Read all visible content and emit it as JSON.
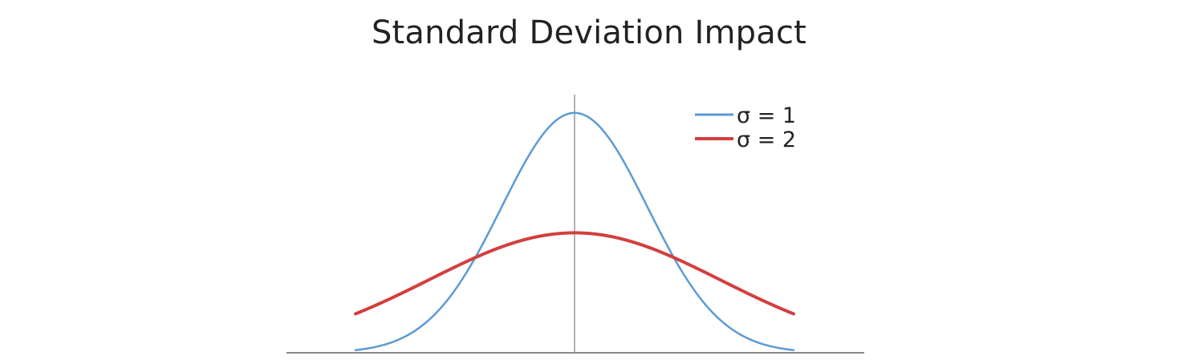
{
  "chart_data": {
    "type": "line",
    "title": "Standard Deviation Impact",
    "xlabel": "",
    "ylabel": "",
    "xlim": [
      -3,
      3
    ],
    "ylim": [
      0,
      0.4
    ],
    "grid": false,
    "legend_position": "top-right",
    "axes": {
      "x_axis_line": true,
      "y_axis_line_at_x": 0,
      "tick_labels": false
    },
    "series": [
      {
        "name": "σ = 1",
        "mu": 0,
        "sigma": 1,
        "color": "#5B9BD5"
      },
      {
        "name": "σ = 2",
        "mu": 0,
        "sigma": 2,
        "color": "#D23F3F"
      }
    ]
  }
}
